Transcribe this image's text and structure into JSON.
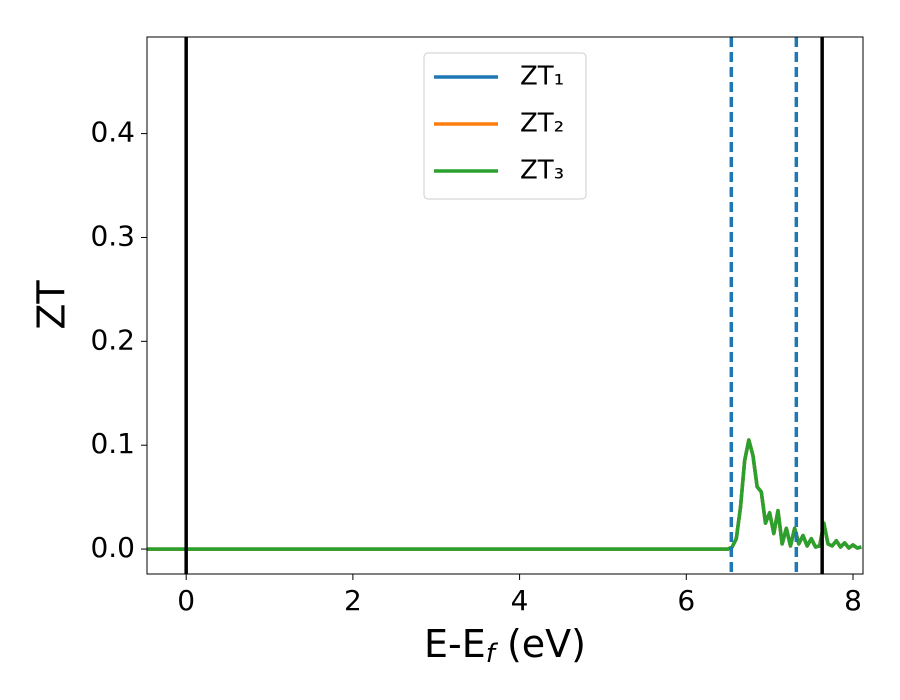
{
  "chart_data": {
    "type": "line",
    "xlabel": [
      "E-E",
      "f",
      " (eV)"
    ],
    "ylabel": "ZT",
    "x": [
      -0.47,
      6.5,
      6.55,
      6.6,
      6.65,
      6.7,
      6.75,
      6.8,
      6.85,
      6.9,
      6.95,
      7.0,
      7.05,
      7.1,
      7.15,
      7.2,
      7.25,
      7.3,
      7.35,
      7.4,
      7.45,
      7.5,
      7.55,
      7.6,
      7.65,
      7.7,
      7.75,
      7.8,
      7.85,
      7.9,
      7.95,
      8.0,
      8.05,
      8.1
    ],
    "series": [
      {
        "name": "ZT₁",
        "color": "#1f77b4",
        "values": [
          0,
          0,
          0.002,
          0.01,
          0.04,
          0.085,
          0.105,
          0.09,
          0.06,
          0.055,
          0.025,
          0.035,
          0.015,
          0.037,
          0.005,
          0.02,
          0.003,
          0.02,
          0.005,
          0.013,
          0.003,
          0.01,
          0.002,
          0.003,
          0.025,
          0.005,
          0.003,
          0.008,
          0.002,
          0.006,
          0.001,
          0.004,
          0.001,
          0.002
        ]
      },
      {
        "name": "ZT₂",
        "color": "#ff7f0e",
        "values": [
          0,
          0,
          0.002,
          0.01,
          0.04,
          0.085,
          0.105,
          0.09,
          0.06,
          0.055,
          0.025,
          0.035,
          0.015,
          0.037,
          0.005,
          0.02,
          0.003,
          0.02,
          0.005,
          0.013,
          0.003,
          0.01,
          0.002,
          0.003,
          0.025,
          0.005,
          0.003,
          0.008,
          0.002,
          0.006,
          0.001,
          0.004,
          0.001,
          0.002
        ]
      },
      {
        "name": "ZT₃",
        "color": "#2ca02c",
        "values": [
          0,
          0,
          0.002,
          0.01,
          0.04,
          0.085,
          0.105,
          0.09,
          0.06,
          0.055,
          0.025,
          0.035,
          0.015,
          0.037,
          0.005,
          0.02,
          0.003,
          0.02,
          0.005,
          0.013,
          0.003,
          0.01,
          0.002,
          0.003,
          0.025,
          0.005,
          0.003,
          0.008,
          0.002,
          0.006,
          0.001,
          0.004,
          0.001,
          0.002
        ]
      }
    ],
    "vlines": [
      {
        "x": 0,
        "color": "#000000",
        "style": "solid"
      },
      {
        "x": 7.63,
        "color": "#000000",
        "style": "solid"
      },
      {
        "x": 6.54,
        "color": "#1f77b4",
        "style": "dashed"
      },
      {
        "x": 7.32,
        "color": "#1f77b4",
        "style": "dashed"
      }
    ],
    "xlim": [
      -0.47,
      8.12
    ],
    "ylim": [
      -0.024,
      0.493
    ],
    "xticks": [
      0,
      2,
      4,
      6,
      8
    ],
    "yticks": [
      {
        "value": 0,
        "label": "0.0"
      },
      0.1,
      0.2,
      0.3,
      0.4
    ],
    "legend": "upper center",
    "grid": false
  }
}
